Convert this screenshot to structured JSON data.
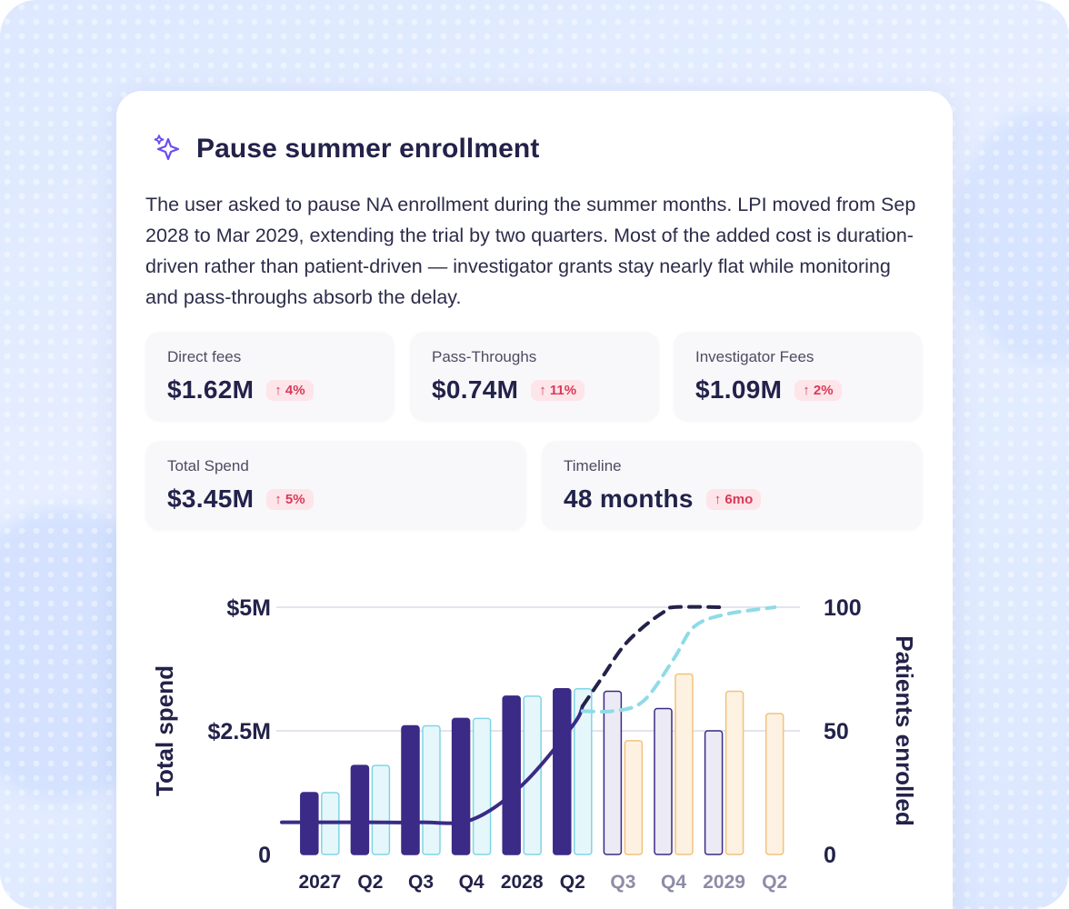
{
  "card": {
    "title": "Pause summer enrollment",
    "description": "The user asked to pause NA enrollment during the summer months. LPI moved from Sep 2028 to Mar 2029, extending the trial by two quarters. Most of the added cost is duration-driven rather than patient-driven — investigator grants stay nearly flat while monitoring and pass-throughs absorb the delay.",
    "icon": "sparkle-icon"
  },
  "metrics": {
    "direct_fees": {
      "label": "Direct fees",
      "value": "$1.62M",
      "change": "↑ 4%"
    },
    "pass_throughs": {
      "label": "Pass-Throughs",
      "value": "$0.74M",
      "change": "↑ 11%"
    },
    "investigator_fees": {
      "label": "Investigator Fees",
      "value": "$1.09M",
      "change": "↑ 2%"
    },
    "total_spend": {
      "label": "Total Spend",
      "value": "$3.45M",
      "change": "↑ 5%"
    },
    "timeline": {
      "label": "Timeline",
      "value": "48 months",
      "change": "↑ 6mo"
    }
  },
  "colors": {
    "primary_bar": "#3b2a86",
    "baseline_bar": "#e6f7fb",
    "baseline_border": "#7fd6e6",
    "projected_bar": "#ecebf5",
    "projected_border": "#3b2a86",
    "alt_bar": "#fdf2e2",
    "alt_border": "#f2c27d",
    "dashed_dark": "#22224a",
    "dashed_light": "#8fdbe8",
    "badge_bg": "#fde5ea",
    "badge_text": "#d63b58"
  },
  "chart_data": {
    "type": "bar",
    "ylabel_left": "Total spend",
    "ylabel_right": "Patients enrolled",
    "ylim_left": [
      0,
      5
    ],
    "ylim_right": [
      0,
      100
    ],
    "left_ticks": [
      "0",
      "$2.5M",
      "$5M"
    ],
    "left_tick_values": [
      0,
      2.5,
      5
    ],
    "right_ticks": [
      "0",
      "50",
      "100"
    ],
    "right_tick_values": [
      0,
      50,
      100
    ],
    "categories": [
      "2027",
      "Q2",
      "Q3",
      "Q4",
      "2028",
      "Q2",
      "Q3",
      "Q4",
      "2029",
      "Q2"
    ],
    "category_muted": [
      false,
      false,
      false,
      false,
      false,
      false,
      true,
      true,
      true,
      true
    ],
    "series": [
      {
        "name": "",
        "style": "solid-dark",
        "values": [
          1.25,
          1.8,
          2.6,
          2.75,
          3.2,
          3.35,
          null,
          null,
          null,
          null
        ]
      },
      {
        "name": "",
        "style": "outline-cyan",
        "values": [
          1.25,
          1.8,
          2.6,
          2.75,
          3.2,
          3.35,
          null,
          null,
          null,
          null
        ]
      },
      {
        "name": "",
        "style": "outline-dark",
        "values": [
          null,
          null,
          null,
          null,
          null,
          null,
          3.3,
          2.95,
          2.5,
          null
        ]
      },
      {
        "name": "",
        "style": "outline-orange",
        "values": [
          null,
          null,
          null,
          null,
          null,
          null,
          2.3,
          3.65,
          3.3,
          2.85
        ]
      }
    ],
    "lines": [
      {
        "name": "",
        "style": "solid-dark",
        "x": [
          0,
          1,
          2,
          3,
          4,
          5,
          5.2
        ],
        "y": [
          13,
          13,
          13,
          14,
          28,
          52,
          60
        ]
      },
      {
        "name": "",
        "style": "dashed-dark",
        "x": [
          5.2,
          5.6,
          6,
          6.4,
          6.8,
          7,
          8
        ],
        "y": [
          60,
          72,
          84,
          92,
          98,
          100,
          100
        ]
      },
      {
        "name": "",
        "style": "dashed-cyan",
        "x": [
          5.2,
          5.8,
          6.4,
          7,
          7.4,
          8,
          9
        ],
        "y": [
          58,
          58,
          62,
          79,
          92,
          97,
          100
        ]
      }
    ],
    "grid": true
  }
}
